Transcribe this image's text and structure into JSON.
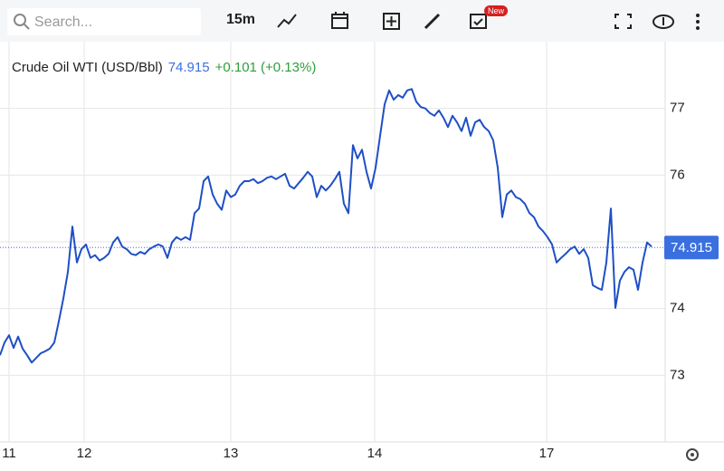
{
  "toolbar": {
    "search_placeholder": "Search...",
    "interval": "15m",
    "badge": "New"
  },
  "chart_data": {
    "type": "line",
    "series": [
      {
        "name": "Crude Oil WTI (USD/Bbl)",
        "color": "#1f4fc6",
        "values": [
          73.3,
          73.49,
          73.6,
          73.41,
          73.58,
          73.4,
          73.3,
          73.19,
          73.26,
          73.33,
          73.36,
          73.4,
          73.49,
          73.81,
          74.15,
          74.55,
          75.23,
          74.69,
          74.89,
          74.96,
          74.76,
          74.8,
          74.72,
          74.76,
          74.82,
          74.99,
          75.07,
          74.93,
          74.89,
          74.82,
          74.8,
          74.85,
          74.82,
          74.89,
          74.93,
          74.96,
          74.93,
          74.76,
          74.99,
          75.07,
          75.03,
          75.07,
          75.03,
          75.43,
          75.5,
          75.91,
          75.98,
          75.71,
          75.57,
          75.48,
          75.77,
          75.67,
          75.71,
          75.84,
          75.91,
          75.91,
          75.94,
          75.88,
          75.91,
          75.96,
          75.98,
          75.94,
          75.98,
          76.02,
          75.84,
          75.8,
          75.88,
          75.96,
          76.05,
          75.98,
          75.67,
          75.84,
          75.77,
          75.84,
          75.94,
          76.05,
          75.57,
          75.43,
          76.45,
          76.25,
          76.38,
          76.05,
          75.8,
          76.11,
          76.59,
          77.06,
          77.27,
          77.13,
          77.2,
          77.16,
          77.27,
          77.29,
          77.1,
          77.02,
          77.0,
          76.93,
          76.89,
          76.97,
          76.86,
          76.72,
          76.89,
          76.79,
          76.66,
          76.86,
          76.59,
          76.79,
          76.83,
          76.72,
          76.66,
          76.52,
          76.11,
          75.37,
          75.71,
          75.77,
          75.67,
          75.64,
          75.57,
          75.43,
          75.37,
          75.23,
          75.16,
          75.07,
          74.96,
          74.69,
          74.76,
          74.82,
          74.89,
          74.93,
          74.82,
          74.89,
          74.76,
          74.35,
          74.31,
          74.28,
          74.69,
          75.5,
          74.01,
          74.42,
          74.55,
          74.62,
          74.58,
          74.28,
          74.69,
          74.99,
          74.93
        ]
      }
    ],
    "x": [
      0,
      1,
      2,
      3,
      4,
      5,
      6,
      7,
      8,
      9,
      10,
      11,
      12,
      13,
      14,
      15,
      16,
      17,
      18,
      19,
      20,
      21,
      22,
      23,
      24,
      25,
      26,
      27,
      28,
      29,
      30,
      31,
      32,
      33,
      34,
      35,
      36,
      37,
      38,
      39,
      40,
      41,
      42,
      43,
      44,
      45,
      46,
      47,
      48,
      49,
      50,
      51,
      52,
      53,
      54,
      55,
      56,
      57,
      58,
      59,
      60,
      61,
      62,
      63,
      64,
      65,
      66,
      67,
      68,
      69,
      70,
      71,
      72,
      73,
      74,
      75,
      76,
      77,
      78,
      79,
      80,
      81,
      82,
      83,
      84,
      85,
      86,
      87,
      88,
      89,
      90,
      91,
      92,
      93,
      94,
      95,
      96,
      97,
      98,
      99,
      100,
      101,
      102,
      103,
      104,
      105,
      106,
      107,
      108,
      109,
      110,
      111,
      112,
      113,
      114,
      115,
      116,
      117,
      118,
      119,
      120,
      121,
      122,
      123,
      124,
      125,
      126,
      127,
      128,
      129,
      130,
      131,
      132,
      133,
      134,
      135,
      136,
      137,
      138,
      139,
      140,
      141,
      142,
      143,
      144
    ],
    "xlim": [
      0,
      147
    ],
    "xticks": [
      {
        "value": 2,
        "label": "11"
      },
      {
        "value": 18.6,
        "label": "12"
      },
      {
        "value": 51,
        "label": "13"
      },
      {
        "value": 82.8,
        "label": "14"
      },
      {
        "value": 120.8,
        "label": "17"
      }
    ],
    "ylim": [
      72,
      78
    ],
    "yticks": [
      73,
      74,
      75,
      76,
      77
    ],
    "grid": true,
    "last_price": 74.915,
    "change": "+0.101 (+0.13%)",
    "price_color": "#3a6fe0",
    "change_color": "#2e9e3e"
  }
}
